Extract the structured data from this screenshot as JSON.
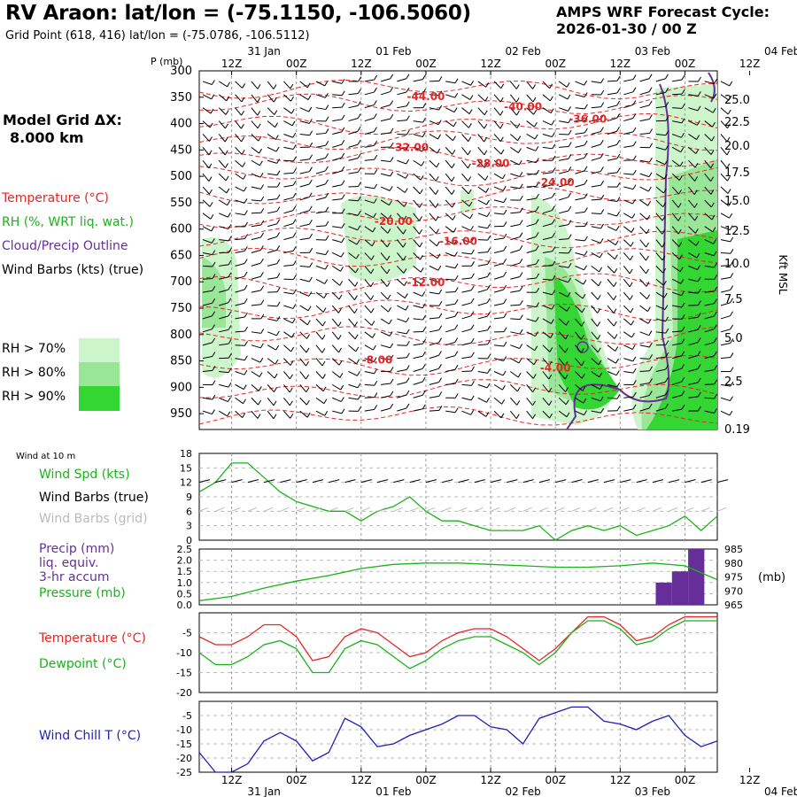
{
  "header": {
    "title": "RV Araon:  lat/lon = (-75.1150, -106.5060)",
    "subtitle": "Grid Point (618, 416) lat/lon = (-75.0786, -106.5112)",
    "cycle_line1": "AMPS WRF Forecast Cycle:",
    "cycle_line2": "2026-01-30 / 00  Z",
    "model_grid_line1": "Model Grid ΔX:",
    "model_grid_line2": "8.000 km"
  },
  "legend": {
    "temperature": "Temperature (°C)",
    "rh": "RH (%, WRT liq. wat.)",
    "cloud": "Cloud/Precip Outline",
    "wind": "Wind Barbs (kts) (true)",
    "rh70": "RH > 70%",
    "rh80": "RH > 80%",
    "rh90": "RH > 90%",
    "rh70_color": "#ccf5cc",
    "rh80_color": "#99e699",
    "rh90_color": "#33d633"
  },
  "time_axis": {
    "top_ticks": [
      "12Z",
      "00Z",
      "12Z",
      "00Z",
      "12Z",
      "00Z",
      "12Z",
      "00Z",
      "12Z",
      "00Z"
    ],
    "dates": [
      "31 Jan",
      "01 Feb",
      "02 Feb",
      "03 Feb",
      "04 Feb"
    ]
  },
  "chart_data": [
    {
      "type": "contour",
      "panel": "upper-air cross-section",
      "ylabel": "P (mb)",
      "y2label": "Kft MSL",
      "pressure_ticks": [
        300,
        350,
        400,
        450,
        500,
        550,
        600,
        650,
        700,
        750,
        800,
        850,
        900,
        950
      ],
      "height_ticks": [
        "25.0",
        "22.5",
        "20.0",
        "17.5",
        "15.0",
        "12.5",
        "10.0",
        "7.5",
        "5.0",
        "2.5",
        "0.19"
      ],
      "ylim": [
        980,
        300
      ],
      "temperature_labels": [
        "-44.00",
        "-40.00",
        "-36.00",
        "-32.00",
        "-28.00",
        "-24.00",
        "-20.00",
        "-16.00",
        "-12.00",
        "-8.00",
        "-4.00"
      ],
      "temperature_label_points": [
        {
          "label": "-44.00",
          "t": 14,
          "p": 355
        },
        {
          "label": "-40.00",
          "t": 20,
          "p": 375
        },
        {
          "label": "-36.00",
          "t": 24,
          "p": 398
        },
        {
          "label": "-32.00",
          "t": 13,
          "p": 452
        },
        {
          "label": "-28.00",
          "t": 18,
          "p": 482
        },
        {
          "label": "-24.00",
          "t": 22,
          "p": 518
        },
        {
          "label": "-20.00",
          "t": 12,
          "p": 592
        },
        {
          "label": "-16.00",
          "t": 16,
          "p": 630
        },
        {
          "label": "-12.00",
          "t": 14,
          "p": 708
        },
        {
          "label": "-8.00",
          "t": 11,
          "p": 855
        },
        {
          "label": "-4.00",
          "t": 22,
          "p": 870
        }
      ]
    },
    {
      "type": "line",
      "panel": "wind",
      "title": "Wind at 10 m",
      "series": [
        {
          "name": "Wind Spd (kts)",
          "color": "#1ab31a"
        }
      ],
      "legend": [
        "Wind Spd (kts)",
        "Wind Barbs (true)",
        "Wind Barbs (grid)"
      ],
      "y_ticks": [
        0,
        3,
        6,
        9,
        12,
        15,
        18
      ],
      "ylim": [
        0,
        18
      ],
      "x": [
        0,
        1,
        2,
        3,
        4,
        5,
        6,
        7,
        8,
        9,
        10,
        11,
        12,
        13,
        14,
        15,
        16,
        17,
        18,
        19,
        20,
        21,
        22,
        23,
        24,
        25,
        26,
        27,
        28,
        29,
        30,
        31,
        32
      ],
      "values": [
        10,
        12,
        16,
        16,
        13,
        10,
        8,
        7,
        6,
        6,
        4,
        6,
        7,
        9,
        6,
        4,
        4,
        3,
        2,
        2,
        2,
        3,
        0,
        2,
        3,
        2,
        3,
        1,
        2,
        3,
        5,
        2,
        5
      ]
    },
    {
      "type": "bar+line",
      "panel": "precip/pressure",
      "legend": [
        "Precip (mm)",
        "liq. equiv.",
        "3-hr accum",
        "Pressure (mb)"
      ],
      "precip_ticks": [
        "2.5",
        "2.0",
        "1.5",
        "1.0",
        "0.5",
        "0.0"
      ],
      "pressure_ticks": [
        "985",
        "980",
        "975",
        "970",
        "965"
      ],
      "unit_right": "(mb)",
      "precip_x": [
        29,
        30,
        31
      ],
      "precip_values": [
        1.0,
        1.5,
        2.5
      ],
      "pressure_x": [
        0,
        2,
        4,
        6,
        8,
        10,
        12,
        14,
        16,
        18,
        20,
        22,
        24,
        26,
        28,
        30,
        32
      ],
      "pressure_values": [
        966.5,
        968,
        971,
        973.5,
        975.5,
        978,
        979.5,
        980,
        980,
        979.5,
        979,
        978.5,
        978.5,
        979,
        980,
        979,
        974
      ],
      "precip_color": "#662e99",
      "pressure_color": "#1ab31a"
    },
    {
      "type": "line",
      "panel": "temperature",
      "legend": [
        "Temperature (°C)",
        "Dewpoint (°C)"
      ],
      "y_ticks": [
        -5,
        -10,
        -15,
        -20
      ],
      "ylim": [
        -20,
        0
      ],
      "x": [
        0,
        1,
        2,
        3,
        4,
        5,
        6,
        7,
        8,
        9,
        10,
        11,
        12,
        13,
        14,
        15,
        16,
        17,
        18,
        19,
        20,
        21,
        22,
        23,
        24,
        25,
        26,
        27,
        28,
        29,
        30,
        31,
        32
      ],
      "series": [
        {
          "name": "Temperature",
          "color": "#e62626",
          "values": [
            -6,
            -8,
            -8,
            -6,
            -3,
            -3,
            -6,
            -12,
            -11,
            -6,
            -4,
            -5,
            -8,
            -11,
            -10,
            -7,
            -5,
            -4,
            -4,
            -6,
            -9,
            -12,
            -9,
            -5,
            -1,
            -1,
            -3,
            -7,
            -6,
            -3,
            -1,
            -1,
            -1
          ]
        },
        {
          "name": "Dewpoint",
          "color": "#1ab31a",
          "values": [
            -10,
            -13,
            -13,
            -11,
            -8,
            -7,
            -9,
            -15,
            -15,
            -9,
            -7,
            -8,
            -11,
            -14,
            -12,
            -9,
            -7,
            -6,
            -6,
            -8,
            -10,
            -13,
            -10,
            -5,
            -2,
            -2,
            -4,
            -8,
            -7,
            -4,
            -2,
            -2,
            -2
          ]
        }
      ]
    },
    {
      "type": "line",
      "panel": "wind-chill",
      "legend": [
        "Wind Chill T (°C)"
      ],
      "y_ticks": [
        -5,
        -10,
        -15,
        -20,
        -25
      ],
      "ylim": [
        -25,
        0
      ],
      "x": [
        0,
        1,
        2,
        3,
        4,
        5,
        6,
        7,
        8,
        9,
        10,
        11,
        12,
        13,
        14,
        15,
        16,
        17,
        18,
        19,
        20,
        21,
        22,
        23,
        24,
        25,
        26,
        27,
        28,
        29,
        30,
        31,
        32
      ],
      "series": [
        {
          "name": "Wind Chill T",
          "color": "#1f1fb3",
          "values": [
            -18,
            -25,
            -25,
            -22,
            -14,
            -11,
            -14,
            -21,
            -18,
            -6,
            -9,
            -16,
            -15,
            -12,
            -10,
            -8,
            -5,
            -5,
            -9,
            -10,
            -15,
            -6,
            -4,
            -2,
            -2,
            -7,
            -8,
            -10,
            -7,
            -5,
            -12,
            -16,
            -14
          ]
        }
      ]
    }
  ]
}
